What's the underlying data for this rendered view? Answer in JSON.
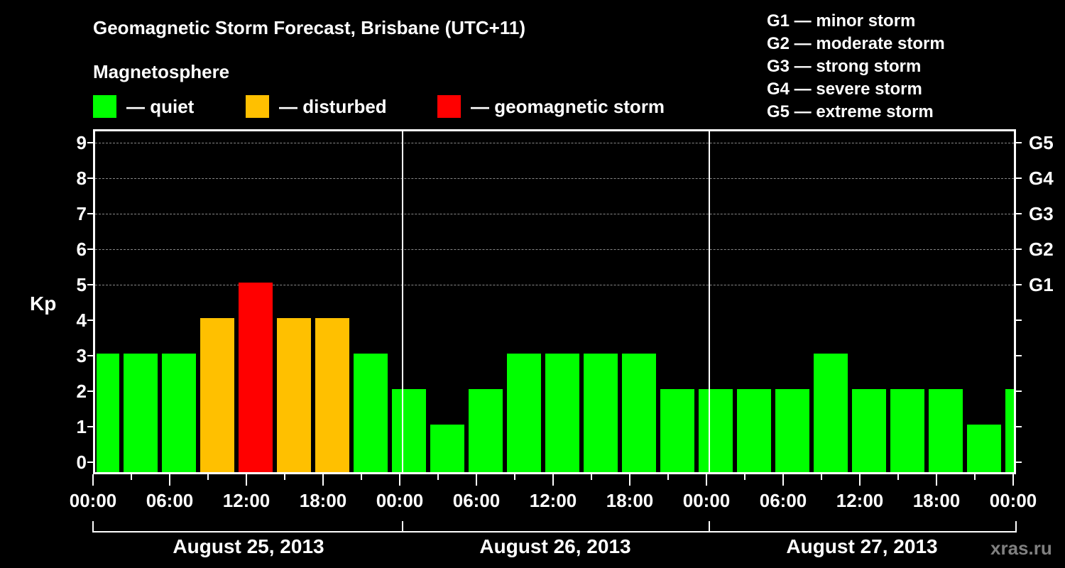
{
  "title": "Geomagnetic Storm Forecast, Brisbane (UTC+11)",
  "subtitle": "Magnetosphere",
  "legend": [
    {
      "label": "— quiet",
      "color": "#00ff00"
    },
    {
      "label": "— disturbed",
      "color": "#ffc000"
    },
    {
      "label": "— geomagnetic storm",
      "color": "#ff0000"
    }
  ],
  "g_scale": [
    "G1 — minor storm",
    "G2 — moderate storm",
    "G3 — strong storm",
    "G4 — severe storm",
    "G5 — extreme storm"
  ],
  "y_axis_label": "Kp",
  "y_ticks": [
    "0",
    "1",
    "2",
    "3",
    "4",
    "5",
    "6",
    "7",
    "8",
    "9"
  ],
  "right_ticks": [
    {
      "kp": 5,
      "label": "G1"
    },
    {
      "kp": 6,
      "label": "G2"
    },
    {
      "kp": 7,
      "label": "G3"
    },
    {
      "kp": 8,
      "label": "G4"
    },
    {
      "kp": 9,
      "label": "G5"
    }
  ],
  "x_ticks": [
    "00:00",
    "06:00",
    "12:00",
    "18:00",
    "00:00",
    "06:00",
    "12:00",
    "18:00",
    "00:00",
    "06:00",
    "12:00",
    "18:00",
    "00:00"
  ],
  "dates": [
    "August 25, 2013",
    "August 26, 2013",
    "August 27, 2013"
  ],
  "watermark": "xras.ru",
  "colors": {
    "quiet": "#00ff00",
    "disturbed": "#ffc000",
    "storm": "#ff0000"
  },
  "chart_data": {
    "type": "bar",
    "title": "Geomagnetic Storm Forecast, Brisbane (UTC+11)",
    "xlabel": "",
    "ylabel": "Kp",
    "ylim": [
      0,
      9
    ],
    "grid": "dashed horizontal at Kp 5-9",
    "interval_hours": 3,
    "x": [
      "Aug25 ~00:00 (partial)",
      "Aug25 03:00",
      "Aug25 06:00",
      "Aug25 09:00",
      "Aug25 12:00",
      "Aug25 15:00",
      "Aug25 18:00",
      "Aug25 21:00",
      "Aug26 00:00",
      "Aug26 03:00",
      "Aug26 06:00",
      "Aug26 09:00",
      "Aug26 12:00",
      "Aug26 15:00",
      "Aug26 18:00",
      "Aug26 21:00",
      "Aug27 00:00",
      "Aug27 03:00",
      "Aug27 06:00",
      "Aug27 09:00",
      "Aug27 12:00",
      "Aug27 15:00",
      "Aug27 18:00",
      "Aug27 21:00",
      "Aug28 00:00 (partial)"
    ],
    "values": [
      3,
      3,
      3,
      4,
      5,
      4,
      4,
      3,
      2,
      1,
      2,
      3,
      3,
      3,
      3,
      2,
      2,
      2,
      2,
      3,
      2,
      2,
      2,
      1,
      2
    ],
    "categories_status": [
      "quiet",
      "quiet",
      "quiet",
      "disturbed",
      "storm",
      "disturbed",
      "disturbed",
      "quiet",
      "quiet",
      "quiet",
      "quiet",
      "quiet",
      "quiet",
      "quiet",
      "quiet",
      "quiet",
      "quiet",
      "quiet",
      "quiet",
      "quiet",
      "quiet",
      "quiet",
      "quiet",
      "quiet",
      "quiet"
    ],
    "right_axis": {
      "5": "G1",
      "6": "G2",
      "7": "G3",
      "8": "G4",
      "9": "G5"
    },
    "legend": [
      "quiet",
      "disturbed",
      "geomagnetic storm"
    ]
  }
}
